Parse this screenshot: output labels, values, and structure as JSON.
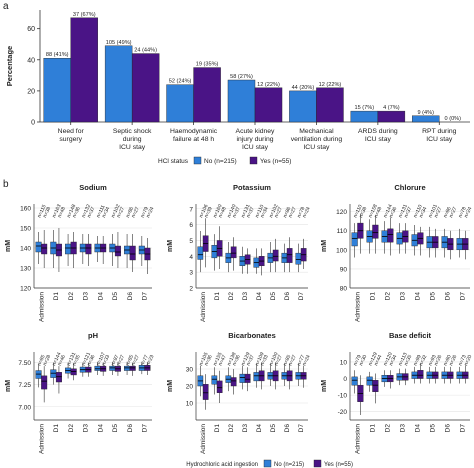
{
  "panel_labels": [
    "a",
    "b"
  ],
  "legend_b": {
    "title": "Hydrochloric acid ingestion",
    "entries": [
      {
        "name": "No (n=215)",
        "color": "#2f7fd8"
      },
      {
        "name": "Yes (n=55)",
        "color": "#4a1486"
      }
    ]
  },
  "chart_data": [
    {
      "type": "bar",
      "ylabel": "Percentage",
      "ylim": [
        0,
        72
      ],
      "yticks": [
        0,
        20,
        40,
        60
      ],
      "legend_title": "HCl status",
      "categories": [
        [
          "Need for",
          "surgery"
        ],
        [
          "Septic shock",
          "during",
          "ICU stay"
        ],
        [
          "Haemodynamic",
          "failure at 48 h"
        ],
        [
          "Acute kidney",
          "injury during",
          "ICU stay"
        ],
        [
          "Mechanical",
          "ventilation during",
          "ICU stay"
        ],
        [
          "ARDS during",
          "ICU stay"
        ],
        [
          "RPT during",
          "ICU stay"
        ]
      ],
      "series": [
        {
          "name": "No (n=215)",
          "color": "#2f7fd8",
          "values": [
            41,
            49,
            24,
            27,
            20,
            7,
            4
          ],
          "value_labels": [
            "88 (41%)",
            "105 (49%)",
            "52 (24%)",
            "58 (27%)",
            "44 (20%)",
            "15 (7%)",
            "9 (4%)"
          ]
        },
        {
          "name": "Yes (n=55)",
          "color": "#4a1486",
          "values": [
            67,
            44,
            35,
            22,
            22,
            7,
            0
          ],
          "value_labels": [
            "37 (67%)",
            "24 (44%)",
            "19 (35%)",
            "12 (22%)",
            "12 (22%)",
            "4 (7%)",
            "0 (0%)"
          ]
        }
      ]
    },
    {
      "type": "box",
      "title": "Sodium",
      "ylabel": "mM",
      "ylim": [
        120,
        162
      ],
      "yticks": [
        120,
        130,
        140,
        150,
        160
      ],
      "grid": true,
      "categories": [
        "Admission",
        "D1",
        "D2",
        "D3",
        "D4",
        "D5",
        "D6",
        "D7"
      ],
      "series": [
        {
          "color": "#2f7fd8",
          "n_labels": [
            "n=115",
            "n=163",
            "n=148",
            "n=132",
            "n=111",
            "n=102",
            "n=86",
            "n=79"
          ],
          "boxes": [
            [
              132,
              138,
              141,
              143,
              148
            ],
            [
              130,
              137,
              140,
              143,
              149
            ],
            [
              131,
              137,
              140,
              142,
              147
            ],
            [
              132,
              138,
              140,
              142,
              147
            ],
            [
              133,
              138,
              140,
              142,
              146
            ],
            [
              131,
              138,
              140,
              142,
              147
            ],
            [
              130,
              137,
              139,
              141,
              147
            ],
            [
              131,
              137,
              139,
              141,
              146
            ]
          ]
        },
        {
          "color": "#4a1486",
          "n_labels": [
            "n=38",
            "n=48",
            "n=36",
            "n=37",
            "n=34",
            "n=27",
            "n=27",
            "n=24"
          ],
          "boxes": [
            [
              130,
              137,
              140,
              142,
              149
            ],
            [
              128,
              136,
              139,
              142,
              150
            ],
            [
              130,
              137,
              140,
              143,
              148
            ],
            [
              131,
              137,
              140,
              142,
              147
            ],
            [
              132,
              138,
              140,
              142,
              146
            ],
            [
              130,
              136,
              138,
              141,
              148
            ],
            [
              128,
              134,
              137,
              141,
              147
            ],
            [
              127,
              134,
              137,
              140,
              145
            ]
          ]
        }
      ]
    },
    {
      "type": "box",
      "title": "Potassium",
      "ylabel": "mM",
      "ylim": [
        2,
        7.3
      ],
      "yticks": [
        2,
        3,
        4,
        5,
        6,
        7
      ],
      "grid": true,
      "categories": [
        "Admission",
        "D1",
        "D2",
        "D3",
        "D4",
        "D5",
        "D6",
        "D7"
      ],
      "series": [
        {
          "color": "#2f7fd8",
          "n_labels": [
            "n=106",
            "n=160",
            "n=140",
            "n=131",
            "n=110",
            "n=102",
            "n=86",
            "n=78"
          ],
          "boxes": [
            [
              3.0,
              3.8,
              4.1,
              4.6,
              5.6
            ],
            [
              3.1,
              3.9,
              4.3,
              4.7,
              5.4
            ],
            [
              3.0,
              3.6,
              3.9,
              4.2,
              4.9
            ],
            [
              2.9,
              3.4,
              3.7,
              4.0,
              4.6
            ],
            [
              2.9,
              3.3,
              3.6,
              3.9,
              4.5
            ],
            [
              3.0,
              3.6,
              3.9,
              4.2,
              4.9
            ],
            [
              3.0,
              3.6,
              3.9,
              4.2,
              4.8
            ],
            [
              3.0,
              3.5,
              3.8,
              4.2,
              4.8
            ]
          ]
        },
        {
          "color": "#4a1486",
          "n_labels": [
            "n=39",
            "n=48",
            "n=37",
            "n=37",
            "n=34",
            "n=27",
            "n=27",
            "n=24"
          ],
          "boxes": [
            [
              3.3,
              4.3,
              4.8,
              5.3,
              6.4
            ],
            [
              3.2,
              4.0,
              4.5,
              5.0,
              5.9
            ],
            [
              3.1,
              3.9,
              4.2,
              4.6,
              5.2
            ],
            [
              2.9,
              3.5,
              3.8,
              4.1,
              4.5
            ],
            [
              2.8,
              3.4,
              3.7,
              4.0,
              4.5
            ],
            [
              3.0,
              3.7,
              4.0,
              4.4,
              5.1
            ],
            [
              3.0,
              3.6,
              4.1,
              4.5,
              5.2
            ],
            [
              3.2,
              3.7,
              4.1,
              4.5,
              5.1
            ]
          ]
        }
      ]
    },
    {
      "type": "box",
      "title": "Chlorure",
      "ylabel": "mM",
      "ylim": [
        80,
        124
      ],
      "yticks": [
        80,
        90,
        100,
        110,
        120
      ],
      "grid": true,
      "categories": [
        "Admission",
        "D1",
        "D2",
        "D3",
        "D4",
        "D5",
        "D6",
        "D7"
      ],
      "series": [
        {
          "color": "#2f7fd8",
          "n_labels": [
            "n=110",
            "n=158",
            "n=144",
            "n=131",
            "n=110",
            "n=101",
            "n=86",
            "n=78"
          ],
          "boxes": [
            [
              96,
              102,
              106,
              109,
              114
            ],
            [
              98,
              104,
              107,
              110,
              116
            ],
            [
              98,
              104,
              107,
              110,
              115
            ],
            [
              98,
              103,
              106,
              109,
              114
            ],
            [
              97,
              102,
              105,
              108,
              113
            ],
            [
              96,
              101,
              104,
              107,
              112
            ],
            [
              96,
              101,
              104,
              107,
              111
            ],
            [
              96,
              100,
              103,
              106,
              111
            ]
          ]
        },
        {
          "color": "#4a1486",
          "n_labels": [
            "n=38",
            "n=48",
            "n=36",
            "n=37",
            "n=34",
            "n=27",
            "n=27",
            "n=24"
          ],
          "boxes": [
            [
              98,
              106,
              110,
              114,
              119
            ],
            [
              98,
              106,
              109,
              113,
              118
            ],
            [
              97,
              104,
              108,
              111,
              117
            ],
            [
              98,
              104,
              107,
              110,
              114
            ],
            [
              97,
              103,
              106,
              109,
              112
            ],
            [
              96,
              101,
              104,
              107,
              111
            ],
            [
              95,
              100,
              103,
              106,
              110
            ],
            [
              95,
              100,
              103,
              106,
              110
            ]
          ]
        }
      ]
    },
    {
      "type": "box",
      "title": "pH",
      "ylabel": "mM",
      "ylim": [
        6.85,
        7.62
      ],
      "yticks": [
        {
          "value": 7.0,
          "label": "7.00"
        },
        7.25,
        {
          "value": 7.5,
          "label": "7.50"
        }
      ],
      "grid": true,
      "categories": [
        "Admission",
        "D1",
        "D2",
        "D3",
        "D4",
        "D5",
        "D6",
        "D7"
      ],
      "series": [
        {
          "color": "#2f7fd8",
          "n_labels": [
            "n=85",
            "n=144",
            "n=131",
            "n=121",
            "n=107",
            "n=97",
            "n=85",
            "n=77"
          ],
          "boxes": [
            [
              7.22,
              7.32,
              7.37,
              7.41,
              7.48
            ],
            [
              7.25,
              7.33,
              7.38,
              7.42,
              7.5
            ],
            [
              7.32,
              7.38,
              7.41,
              7.44,
              7.5
            ],
            [
              7.34,
              7.39,
              7.42,
              7.45,
              7.5
            ],
            [
              7.36,
              7.41,
              7.43,
              7.46,
              7.51
            ],
            [
              7.36,
              7.41,
              7.44,
              7.46,
              7.51
            ],
            [
              7.36,
              7.41,
              7.44,
              7.46,
              7.51
            ],
            [
              7.37,
              7.41,
              7.44,
              7.47,
              7.51
            ]
          ]
        },
        {
          "color": "#4a1486",
          "n_labels": [
            "n=28",
            "n=46",
            "n=35",
            "n=36",
            "n=33",
            "n=27",
            "n=27",
            "n=23"
          ],
          "boxes": [
            [
              7.05,
              7.2,
              7.29,
              7.35,
              7.46
            ],
            [
              7.15,
              7.28,
              7.34,
              7.39,
              7.46
            ],
            [
              7.3,
              7.36,
              7.4,
              7.43,
              7.49
            ],
            [
              7.34,
              7.39,
              7.42,
              7.45,
              7.5
            ],
            [
              7.35,
              7.4,
              7.43,
              7.46,
              7.5
            ],
            [
              7.35,
              7.4,
              7.43,
              7.46,
              7.51
            ],
            [
              7.35,
              7.41,
              7.44,
              7.46,
              7.5
            ],
            [
              7.36,
              7.41,
              7.44,
              7.47,
              7.51
            ]
          ]
        }
      ]
    },
    {
      "type": "box",
      "title": "Bicarbonates",
      "ylabel": "mM",
      "ylim": [
        0,
        40
      ],
      "yticks": [
        10,
        20,
        30
      ],
      "grid": true,
      "categories": [
        "Admission",
        "D1",
        "D2",
        "D3",
        "D4",
        "D5",
        "D6",
        "D7"
      ],
      "series": [
        {
          "color": "#2f7fd8",
          "n_labels": [
            "n=105",
            "n=155",
            "n=138",
            "n=129",
            "n=109",
            "n=100",
            "n=85",
            "n=77"
          ],
          "boxes": [
            [
              14,
              20,
              23,
              26,
              32
            ],
            [
              15,
              21,
              24,
              26,
              31
            ],
            [
              17,
              22,
              24,
              26,
              31
            ],
            [
              18,
              22,
              25,
              27,
              32
            ],
            [
              19,
              23,
              26,
              28,
              33
            ],
            [
              20,
              24,
              26,
              28,
              33
            ],
            [
              20,
              24,
              26,
              28,
              33
            ],
            [
              20,
              24,
              26,
              28,
              33
            ]
          ]
        },
        {
          "color": "#4a1486",
          "n_labels": [
            "n=36",
            "n=47",
            "n=36",
            "n=37",
            "n=33",
            "n=27",
            "n=27",
            "n=24"
          ],
          "boxes": [
            [
              6,
              12,
              16,
              21,
              27
            ],
            [
              10,
              16,
              19,
              23,
              29
            ],
            [
              15,
              20,
              23,
              25,
              30
            ],
            [
              17,
              22,
              24,
              27,
              31
            ],
            [
              18,
              23,
              26,
              29,
              34
            ],
            [
              18,
              23,
              26,
              29,
              34
            ],
            [
              18,
              23,
              26,
              29,
              33
            ],
            [
              19,
              24,
              26,
              28,
              32
            ]
          ]
        }
      ]
    },
    {
      "type": "box",
      "title": "Base deficit",
      "ylabel": "mM",
      "ylim": [
        -25,
        16
      ],
      "yticks": [
        -20,
        -10,
        0,
        10
      ],
      "grid": true,
      "categories": [
        "Admission",
        "D1",
        "D2",
        "D3",
        "D4",
        "D5",
        "D6",
        "D7"
      ],
      "series": [
        {
          "color": "#2f7fd8",
          "n_labels": [
            "n=79",
            "n=129",
            "n=120",
            "n=113",
            "n=99",
            "n=93",
            "n=80",
            "n=73"
          ],
          "boxes": [
            [
              -9,
              -4,
              -1,
              1,
              5
            ],
            [
              -8,
              -4,
              -1,
              1,
              4
            ],
            [
              -5,
              -2,
              0,
              2,
              5
            ],
            [
              -4,
              -1,
              1,
              3,
              6
            ],
            [
              -3,
              0,
              2,
              4,
              7
            ],
            [
              -3,
              0,
              2,
              4,
              7
            ],
            [
              -3,
              0,
              2,
              4,
              7
            ],
            [
              -3,
              0,
              2,
              4,
              7
            ]
          ]
        },
        {
          "color": "#4a1486",
          "n_labels": [
            "n=30",
            "n=44",
            "n=34",
            "n=35",
            "n=32",
            "n=26",
            "n=26",
            "n=20"
          ],
          "boxes": [
            [
              -22,
              -14,
              -9,
              -4,
              2
            ],
            [
              -15,
              -8,
              -4,
              -1,
              3
            ],
            [
              -6,
              -2,
              0,
              2,
              5
            ],
            [
              -4,
              -1,
              1,
              3,
              6
            ],
            [
              -3,
              0,
              2,
              5,
              9
            ],
            [
              -3,
              0,
              2,
              4,
              7
            ],
            [
              -3,
              0,
              2,
              4,
              7
            ],
            [
              -3,
              0,
              2,
              4,
              8
            ]
          ]
        }
      ]
    }
  ]
}
